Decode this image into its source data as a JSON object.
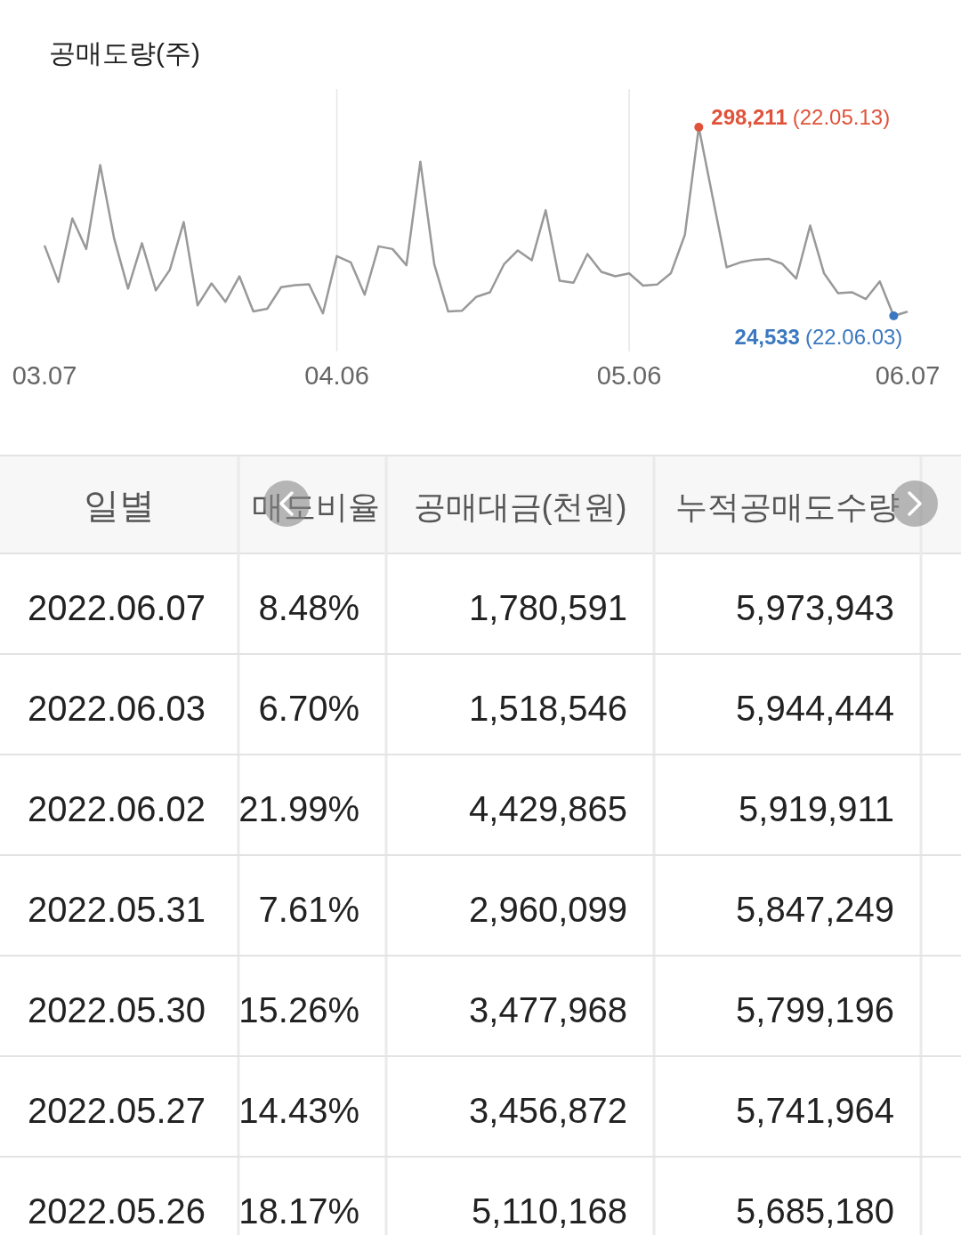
{
  "chart_data": [
    {
      "type": "line",
      "ylabel": "공매도량(주)",
      "categories": [
        "03.07",
        null,
        null,
        null,
        null,
        null,
        null,
        null,
        null,
        null,
        null,
        null,
        null,
        null,
        null,
        null,
        null,
        null,
        null,
        null,
        null,
        "04.06",
        null,
        null,
        null,
        null,
        null,
        null,
        null,
        null,
        null,
        null,
        null,
        null,
        null,
        null,
        null,
        null,
        null,
        null,
        null,
        null,
        "05.06",
        null,
        null,
        null,
        null,
        null,
        null,
        null,
        null,
        null,
        null,
        null,
        null,
        null,
        null,
        null,
        null,
        null,
        null,
        null,
        "06.07"
      ],
      "series": [
        {
          "color": "#999999",
          "values": [
            126700,
            73800,
            166000,
            121500,
            243400,
            137000,
            64100,
            129900,
            61500,
            91200,
            160600,
            39800,
            71700,
            45000,
            81900,
            30900,
            34900,
            66100,
            69000,
            70300,
            28100,
            111200,
            102200,
            55200,
            125400,
            121500,
            97900,
            248300,
            99300,
            30900,
            32100,
            51900,
            58800,
            99100,
            119500,
            105100,
            177700,
            75500,
            72600,
            114300,
            88400,
            81900,
            86100,
            68500,
            69900,
            86600,
            142200,
            298211,
            196300,
            95000,
            102200,
            106000,
            107300,
            100000,
            78700,
            155600,
            86100,
            57400,
            58800,
            49000,
            74600,
            24533,
            30600
          ],
          "colors": [
            null,
            null,
            null,
            null,
            null,
            null,
            null,
            null,
            null,
            null,
            null,
            null,
            null,
            null,
            null,
            null,
            null,
            null,
            null,
            null,
            null,
            null,
            null,
            null,
            null,
            null,
            null,
            null,
            null,
            null,
            null,
            null,
            null,
            null,
            null,
            null,
            null,
            null,
            null,
            null,
            null,
            null,
            null,
            null,
            null,
            null,
            null,
            "#e0533a",
            null,
            null,
            null,
            null,
            null,
            null,
            null,
            null,
            null,
            null,
            null,
            null,
            null,
            "#3b78c0",
            null
          ],
          "value_labels": [
            null,
            null,
            null,
            null,
            null,
            null,
            null,
            null,
            null,
            null,
            null,
            null,
            null,
            null,
            null,
            null,
            null,
            null,
            null,
            null,
            null,
            null,
            null,
            null,
            null,
            null,
            null,
            null,
            null,
            null,
            null,
            null,
            null,
            null,
            null,
            null,
            null,
            null,
            null,
            null,
            null,
            null,
            null,
            null,
            null,
            null,
            null,
            "298,211 (22.05.13)",
            null,
            null,
            null,
            null,
            null,
            null,
            null,
            null,
            null,
            null,
            null,
            null,
            null,
            "24,533 (22.06.03)",
            null
          ]
        }
      ],
      "tick_labels": "x",
      "grid": "x"
    },
    {
      "type": "other",
      "categories": [
        "일별",
        "매도비율",
        "공매대금(천원)",
        "누적공매도수량"
      ],
      "y_categories": [
        "2022.06.07",
        "2022.06.03",
        "2022.06.02",
        "2022.05.31",
        "2022.05.30",
        "2022.05.27",
        "2022.05.26"
      ],
      "cell_labels": [
        [
          "8.48%",
          "1,780,591",
          "5,973,943"
        ],
        [
          "6.70%",
          "1,518,546",
          "5,944,444"
        ],
        [
          "21.99%",
          "4,429,865",
          "5,919,911"
        ],
        [
          "7.61%",
          "2,960,099",
          "5,847,249"
        ],
        [
          "15.26%",
          "3,477,968",
          "5,799,196"
        ],
        [
          "14.43%",
          "3,456,872",
          "5,741,964"
        ],
        [
          "18.17%",
          "5,110,168",
          "5,685,180"
        ]
      ]
    }
  ]
}
